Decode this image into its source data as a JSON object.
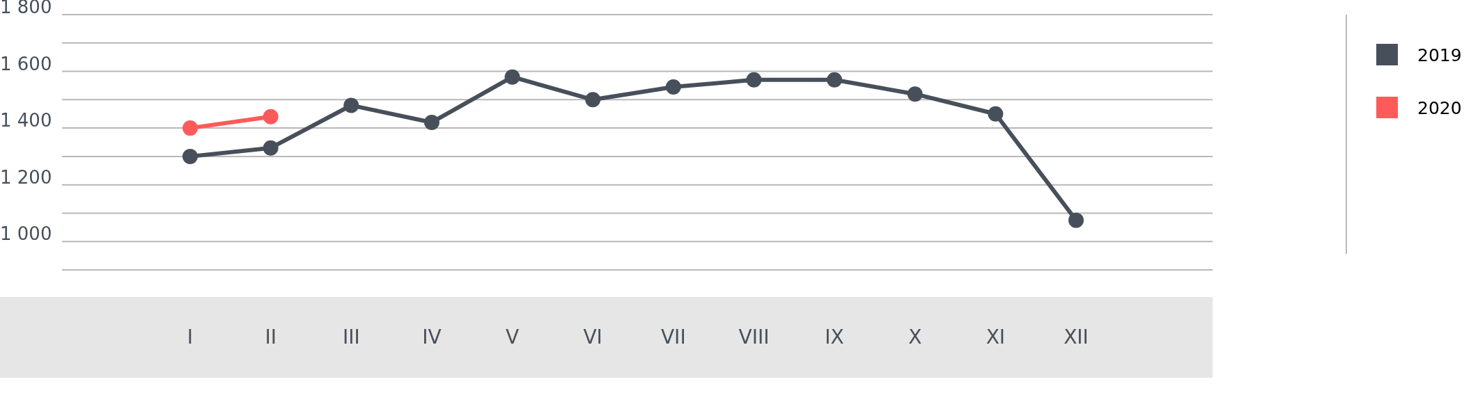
{
  "chart_data": {
    "type": "line",
    "categories": [
      "I",
      "II",
      "III",
      "IV",
      "V",
      "VI",
      "VII",
      "VIII",
      "IX",
      "X",
      "XI",
      "XII"
    ],
    "series": [
      {
        "name": "2019",
        "color": "#47505a",
        "values": [
          1300,
          1330,
          1480,
          1420,
          1580,
          1500,
          1545,
          1570,
          1570,
          1520,
          1450,
          1075
        ]
      },
      {
        "name": "2020",
        "color": "#ff5a5a",
        "values": [
          1400,
          1440,
          null,
          null,
          null,
          null,
          null,
          null,
          null,
          null,
          null,
          null
        ]
      }
    ],
    "ylim": [
      900,
      1800
    ],
    "yticks": [
      {
        "value": 900,
        "label": null
      },
      {
        "value": 1000,
        "label": "1 000"
      },
      {
        "value": 1100,
        "label": null
      },
      {
        "value": 1200,
        "label": "1 200"
      },
      {
        "value": 1300,
        "label": null
      },
      {
        "value": 1400,
        "label": "1 400"
      },
      {
        "value": 1500,
        "label": null
      },
      {
        "value": 1600,
        "label": "1 600"
      },
      {
        "value": 1700,
        "label": null
      },
      {
        "value": 1800,
        "label": "1 800"
      }
    ],
    "grid": "y",
    "legend": "top right",
    "marker": "circle",
    "line_style": "solid"
  }
}
